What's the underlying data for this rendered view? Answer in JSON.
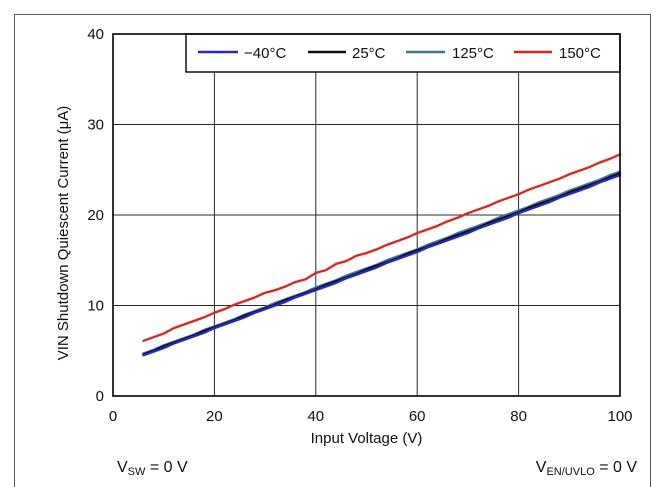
{
  "chart_data": {
    "type": "line",
    "xlabel": "Input Voltage (V)",
    "ylabel": "VIN Shutdown Quiescent Current (μA)",
    "xlim": [
      0,
      100
    ],
    "ylim": [
      0,
      40
    ],
    "xticks": [
      0,
      20,
      40,
      60,
      80,
      100
    ],
    "yticks": [
      0,
      10,
      20,
      30,
      40
    ],
    "grid": true,
    "legend_position": "top-right",
    "x": [
      6,
      8,
      10,
      12,
      14,
      16,
      18,
      20,
      22,
      24,
      26,
      28,
      30,
      32,
      34,
      36,
      38,
      40,
      42,
      44,
      46,
      48,
      50,
      52,
      54,
      56,
      58,
      60,
      62,
      64,
      66,
      68,
      70,
      72,
      74,
      76,
      78,
      80,
      82,
      84,
      86,
      88,
      90,
      92,
      94,
      96,
      98,
      100
    ],
    "series": [
      {
        "name": "−40°C",
        "color": "#2424d6",
        "values": [
          4.5,
          4.9,
          5.3,
          5.8,
          6.2,
          6.6,
          7.0,
          7.5,
          7.9,
          8.3,
          8.7,
          9.2,
          9.6,
          10.0,
          10.4,
          10.9,
          11.3,
          11.7,
          12.1,
          12.5,
          13.0,
          13.4,
          13.8,
          14.2,
          14.7,
          15.1,
          15.5,
          15.9,
          16.4,
          16.8,
          17.2,
          17.6,
          18.0,
          18.5,
          18.9,
          19.3,
          19.7,
          20.2,
          20.6,
          21.0,
          21.4,
          21.9,
          22.3,
          22.7,
          23.1,
          23.6,
          24.0,
          24.4
        ]
      },
      {
        "name": "25°C",
        "color": "#111111",
        "values": [
          4.6,
          5.0,
          5.5,
          5.9,
          6.3,
          6.7,
          7.2,
          7.6,
          8.0,
          8.4,
          8.9,
          9.3,
          9.7,
          10.1,
          10.6,
          11.0,
          11.4,
          11.8,
          12.3,
          12.7,
          13.1,
          13.5,
          14.0,
          14.4,
          14.8,
          15.2,
          15.7,
          16.1,
          16.5,
          16.9,
          17.4,
          17.8,
          18.2,
          18.6,
          19.1,
          19.5,
          19.9,
          20.3,
          20.8,
          21.2,
          21.6,
          22.0,
          22.5,
          22.9,
          23.3,
          23.7,
          24.2,
          24.6
        ]
      },
      {
        "name": "125°C",
        "color": "#3d7788",
        "values": [
          4.7,
          5.1,
          5.6,
          6.0,
          6.4,
          6.8,
          7.3,
          7.7,
          8.1,
          8.5,
          9.0,
          9.4,
          9.8,
          10.3,
          10.7,
          11.1,
          11.5,
          12.0,
          12.4,
          12.8,
          13.3,
          13.7,
          14.1,
          14.5,
          15.0,
          15.4,
          15.8,
          16.2,
          16.7,
          17.1,
          17.5,
          18.0,
          18.4,
          18.8,
          19.2,
          19.7,
          20.1,
          20.5,
          20.9,
          21.4,
          21.8,
          22.2,
          22.7,
          23.1,
          23.5,
          23.9,
          24.4,
          24.8
        ]
      },
      {
        "name": "150°C",
        "color": "#e2201c",
        "values": [
          6.1,
          6.5,
          6.9,
          7.5,
          7.9,
          8.3,
          8.7,
          9.2,
          9.6,
          10.1,
          10.5,
          10.9,
          11.4,
          11.7,
          12.1,
          12.6,
          12.9,
          13.6,
          13.9,
          14.6,
          14.9,
          15.5,
          15.8,
          16.2,
          16.7,
          17.1,
          17.5,
          18.0,
          18.4,
          18.8,
          19.3,
          19.7,
          20.2,
          20.6,
          21.0,
          21.5,
          21.9,
          22.3,
          22.8,
          23.2,
          23.6,
          24.0,
          24.5,
          24.9,
          25.3,
          25.8,
          26.2,
          26.7
        ]
      }
    ]
  },
  "annotations": {
    "left": {
      "main": "V",
      "sub": "SW",
      "rest": " = 0 V"
    },
    "right": {
      "main": "V",
      "sub": "EN/UVLO",
      "rest": " = 0 V"
    }
  }
}
